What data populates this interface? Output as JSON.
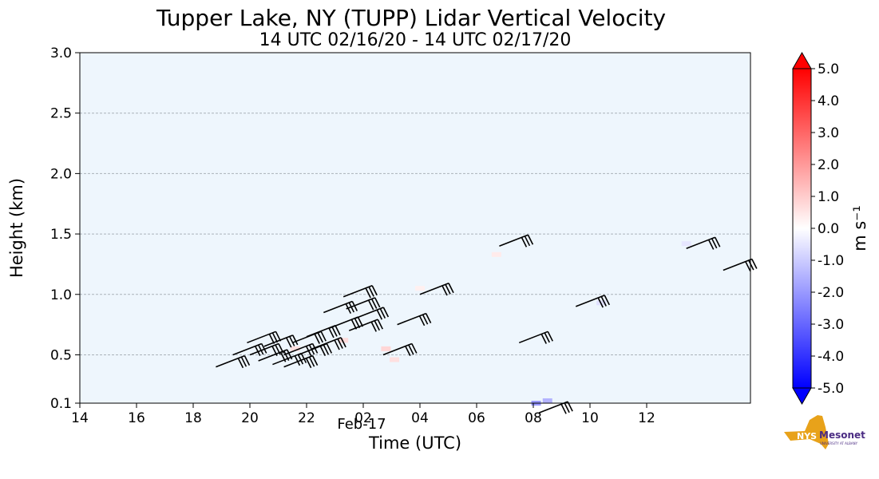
{
  "chart_data": {
    "type": "heatmap",
    "title": "Tupper Lake, NY (TUPP) Lidar Vertical Velocity",
    "subtitle": "14 UTC 02/16/20 - 14 UTC 02/17/20",
    "xlabel": "Time (UTC)",
    "ylabel": "Height (km)",
    "x_tick_labels": [
      "14",
      "16",
      "18",
      "20",
      "22",
      "02",
      "04",
      "06",
      "08",
      "10",
      "12"
    ],
    "x_date_label": "Feb-17",
    "y_tick_labels": [
      "0.1",
      "0.5",
      "1.0",
      "1.5",
      "2.0",
      "2.5",
      "3.0"
    ],
    "y_ticks": [
      0.1,
      0.5,
      1.0,
      1.5,
      2.0,
      2.5,
      3.0
    ],
    "ylim": [
      0.1,
      3.0
    ],
    "x_range_hours": [
      14,
      37.8
    ],
    "grid": "horizontal dashed",
    "background_color": "#eef6fd",
    "colorbar": {
      "label": "m s⁻¹",
      "tick_labels": [
        "5.0",
        "4.0",
        "3.0",
        "2.0",
        "1.0",
        "0.0",
        "-1.0",
        "-2.0",
        "-3.0",
        "-4.0",
        "-5.0"
      ],
      "range": [
        -5.0,
        5.0
      ],
      "colors": {
        "max": "#ff0000",
        "mid": "#ffffff",
        "min": "#0000ff"
      }
    },
    "patches": [
      {
        "t": 21.6,
        "h": 0.55,
        "v": 0.6
      },
      {
        "t": 23.3,
        "h": 0.62,
        "v": 0.7
      },
      {
        "t": 24.8,
        "h": 0.55,
        "v": 0.8
      },
      {
        "t": 25.1,
        "h": 0.46,
        "v": 0.6
      },
      {
        "t": 30.5,
        "h": 0.12,
        "v": -1.5
      },
      {
        "t": 30.1,
        "h": 0.1,
        "v": -2.0
      },
      {
        "t": 35.4,
        "h": 1.42,
        "v": -0.5
      },
      {
        "t": 26.0,
        "h": 1.05,
        "v": 0.3
      },
      {
        "t": 28.7,
        "h": 1.33,
        "v": 0.4
      },
      {
        "t": 32.4,
        "h": 0.93,
        "v": -0.6
      }
    ],
    "wind_barbs": [
      {
        "t": 18.8,
        "h": 0.4
      },
      {
        "t": 19.4,
        "h": 0.5
      },
      {
        "t": 19.9,
        "h": 0.6
      },
      {
        "t": 20.0,
        "h": 0.5
      },
      {
        "t": 20.3,
        "h": 0.45
      },
      {
        "t": 20.5,
        "h": 0.57
      },
      {
        "t": 20.8,
        "h": 0.42
      },
      {
        "t": 21.2,
        "h": 0.5
      },
      {
        "t": 21.2,
        "h": 0.4
      },
      {
        "t": 21.5,
        "h": 0.6
      },
      {
        "t": 21.7,
        "h": 0.5
      },
      {
        "t": 22.0,
        "h": 0.65
      },
      {
        "t": 22.2,
        "h": 0.55
      },
      {
        "t": 22.6,
        "h": 0.85
      },
      {
        "t": 22.8,
        "h": 0.72
      },
      {
        "t": 23.3,
        "h": 0.98
      },
      {
        "t": 23.4,
        "h": 0.88
      },
      {
        "t": 23.5,
        "h": 0.7
      },
      {
        "t": 23.7,
        "h": 0.8
      },
      {
        "t": 24.7,
        "h": 0.5
      },
      {
        "t": 25.2,
        "h": 0.75
      },
      {
        "t": 26.0,
        "h": 1.0
      },
      {
        "t": 28.8,
        "h": 1.4
      },
      {
        "t": 29.5,
        "h": 0.6
      },
      {
        "t": 31.5,
        "h": 0.9
      },
      {
        "t": 35.4,
        "h": 1.38
      },
      {
        "t": 36.7,
        "h": 1.2
      },
      {
        "t": 30.2,
        "h": 0.02
      }
    ]
  }
}
